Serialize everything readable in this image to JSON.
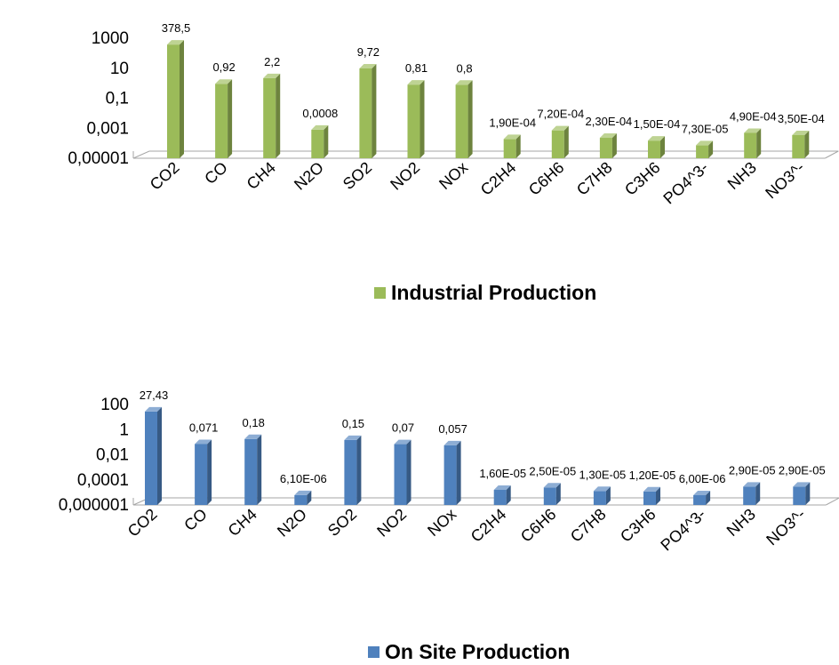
{
  "chart_data": [
    {
      "type": "bar",
      "scale": "log",
      "grid": false,
      "legend_position": "bottom",
      "title": "",
      "xlabel": "",
      "ylabel": "",
      "ylim": [
        1e-05,
        1000
      ],
      "y_ticks": [
        "1000",
        "10",
        "0,1",
        "0,001",
        "0,00001"
      ],
      "categories": [
        "CO2",
        "CO",
        "CH4",
        "N2O",
        "SO2",
        "NO2",
        "NOx",
        "C2H4",
        "C6H6",
        "C7H8",
        "C3H6",
        "PO4^3-",
        "NH3",
        "NO3^-"
      ],
      "series": [
        {
          "name": "Industrial Production",
          "color": "#9BBB59",
          "values": [
            378.5,
            0.92,
            2.2,
            0.0008,
            9.72,
            0.81,
            0.8,
            0.00019,
            0.00072,
            0.00023,
            0.00015,
            7.3e-05,
            0.00049,
            0.00035
          ],
          "labels": [
            "378,5",
            "0,92",
            "2,2",
            "0,0008",
            "9,72",
            "0,81",
            "0,8",
            "1,90E-04",
            "7,20E-04",
            "2,30E-04",
            "1,50E-04",
            "7,30E-05",
            "4,90E-04",
            "3,50E-04"
          ]
        }
      ]
    },
    {
      "type": "bar",
      "scale": "log",
      "grid": false,
      "legend_position": "bottom",
      "title": "",
      "xlabel": "",
      "ylabel": "",
      "ylim": [
        1e-06,
        100
      ],
      "y_ticks": [
        "100",
        "1",
        "0,01",
        "0,0001",
        "0,000001"
      ],
      "categories": [
        "CO2",
        "CO",
        "CH4",
        "N2O",
        "SO2",
        "NO2",
        "NOx",
        "C2H4",
        "C6H6",
        "C7H8",
        "C3H6",
        "PO4^3-",
        "NH3",
        "NO3^-"
      ],
      "series": [
        {
          "name": "On Site Production",
          "color": "#4F81BD",
          "values": [
            27.43,
            0.071,
            0.18,
            6.1e-06,
            0.15,
            0.07,
            0.057,
            1.6e-05,
            2.5e-05,
            1.3e-05,
            1.2e-05,
            6e-06,
            2.9e-05,
            2.9e-05
          ],
          "labels": [
            "27,43",
            "0,071",
            "0,18",
            "6,10E-06",
            "0,15",
            "0,07",
            "0,057",
            "1,60E-05",
            "2,50E-05",
            "1,30E-05",
            "1,20E-05",
            "6,00E-06",
            "2,90E-05",
            "2,90E-05"
          ]
        }
      ]
    }
  ]
}
